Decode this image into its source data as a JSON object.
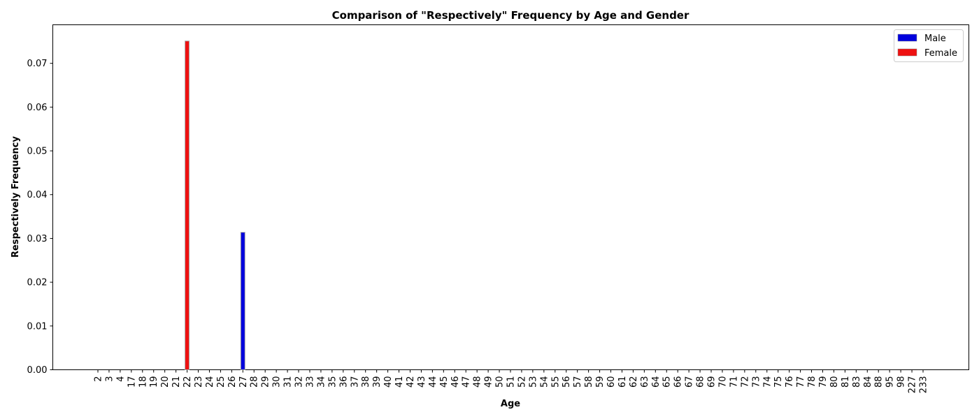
{
  "chart_data": {
    "type": "bar",
    "title": "Comparison of \"Respectively\" Frequency by Age and Gender",
    "xlabel": "Age",
    "ylabel": "Respectively Frequency",
    "ylim": [
      0,
      0.0788
    ],
    "yticks": [
      0.0,
      0.01,
      0.02,
      0.03,
      0.04,
      0.05,
      0.06,
      0.07
    ],
    "ytick_labels": [
      "0.00",
      "0.01",
      "0.02",
      "0.03",
      "0.04",
      "0.05",
      "0.06",
      "0.07"
    ],
    "grid": false,
    "legend_position": "top-right",
    "categories": [
      "2",
      "3",
      "4",
      "17",
      "18",
      "19",
      "20",
      "21",
      "22",
      "23",
      "24",
      "25",
      "26",
      "27",
      "28",
      "29",
      "30",
      "31",
      "32",
      "33",
      "34",
      "35",
      "36",
      "37",
      "38",
      "39",
      "40",
      "41",
      "42",
      "43",
      "44",
      "45",
      "46",
      "47",
      "48",
      "49",
      "50",
      "51",
      "52",
      "53",
      "54",
      "55",
      "56",
      "57",
      "58",
      "59",
      "60",
      "61",
      "62",
      "63",
      "64",
      "65",
      "66",
      "67",
      "68",
      "69",
      "70",
      "71",
      "72",
      "73",
      "74",
      "75",
      "76",
      "77",
      "78",
      "79",
      "80",
      "81",
      "83",
      "84",
      "88",
      "95",
      "98",
      "227",
      "233"
    ],
    "series": [
      {
        "name": "Male",
        "color": "#0000dd",
        "values": [
          0,
          0,
          0,
          0,
          0,
          0,
          0,
          0,
          0,
          0,
          0,
          0,
          0,
          0.0314,
          0,
          0,
          0,
          0,
          0,
          0,
          0,
          0,
          0,
          0,
          0,
          0,
          0,
          0,
          0,
          0,
          0,
          0,
          0,
          0,
          0,
          0,
          0,
          0,
          0,
          0,
          0,
          0,
          0,
          0,
          0,
          0,
          0,
          0,
          0,
          0,
          0,
          0,
          0,
          0,
          0,
          0,
          0,
          0,
          0,
          0,
          0,
          0,
          0,
          0,
          0,
          0,
          0,
          0,
          0,
          0,
          0,
          0,
          0,
          0,
          0
        ]
      },
      {
        "name": "Female",
        "color": "#ee1111",
        "values": [
          0,
          0,
          0,
          0,
          0,
          0,
          0,
          0,
          0.0751,
          0,
          0,
          0,
          0,
          0,
          0,
          0,
          0,
          0,
          0,
          0,
          0,
          0,
          0,
          0,
          0,
          0,
          0,
          0,
          0,
          0,
          0,
          0,
          0,
          0,
          0,
          0,
          0,
          0,
          0,
          0,
          0,
          0,
          0,
          0,
          0,
          0,
          0,
          0,
          0,
          0,
          0,
          0,
          0,
          0,
          0,
          0,
          0,
          0,
          0,
          0,
          0,
          0,
          0,
          0,
          0,
          0,
          0,
          0,
          0,
          0,
          0,
          0,
          0,
          0,
          0
        ]
      }
    ]
  }
}
